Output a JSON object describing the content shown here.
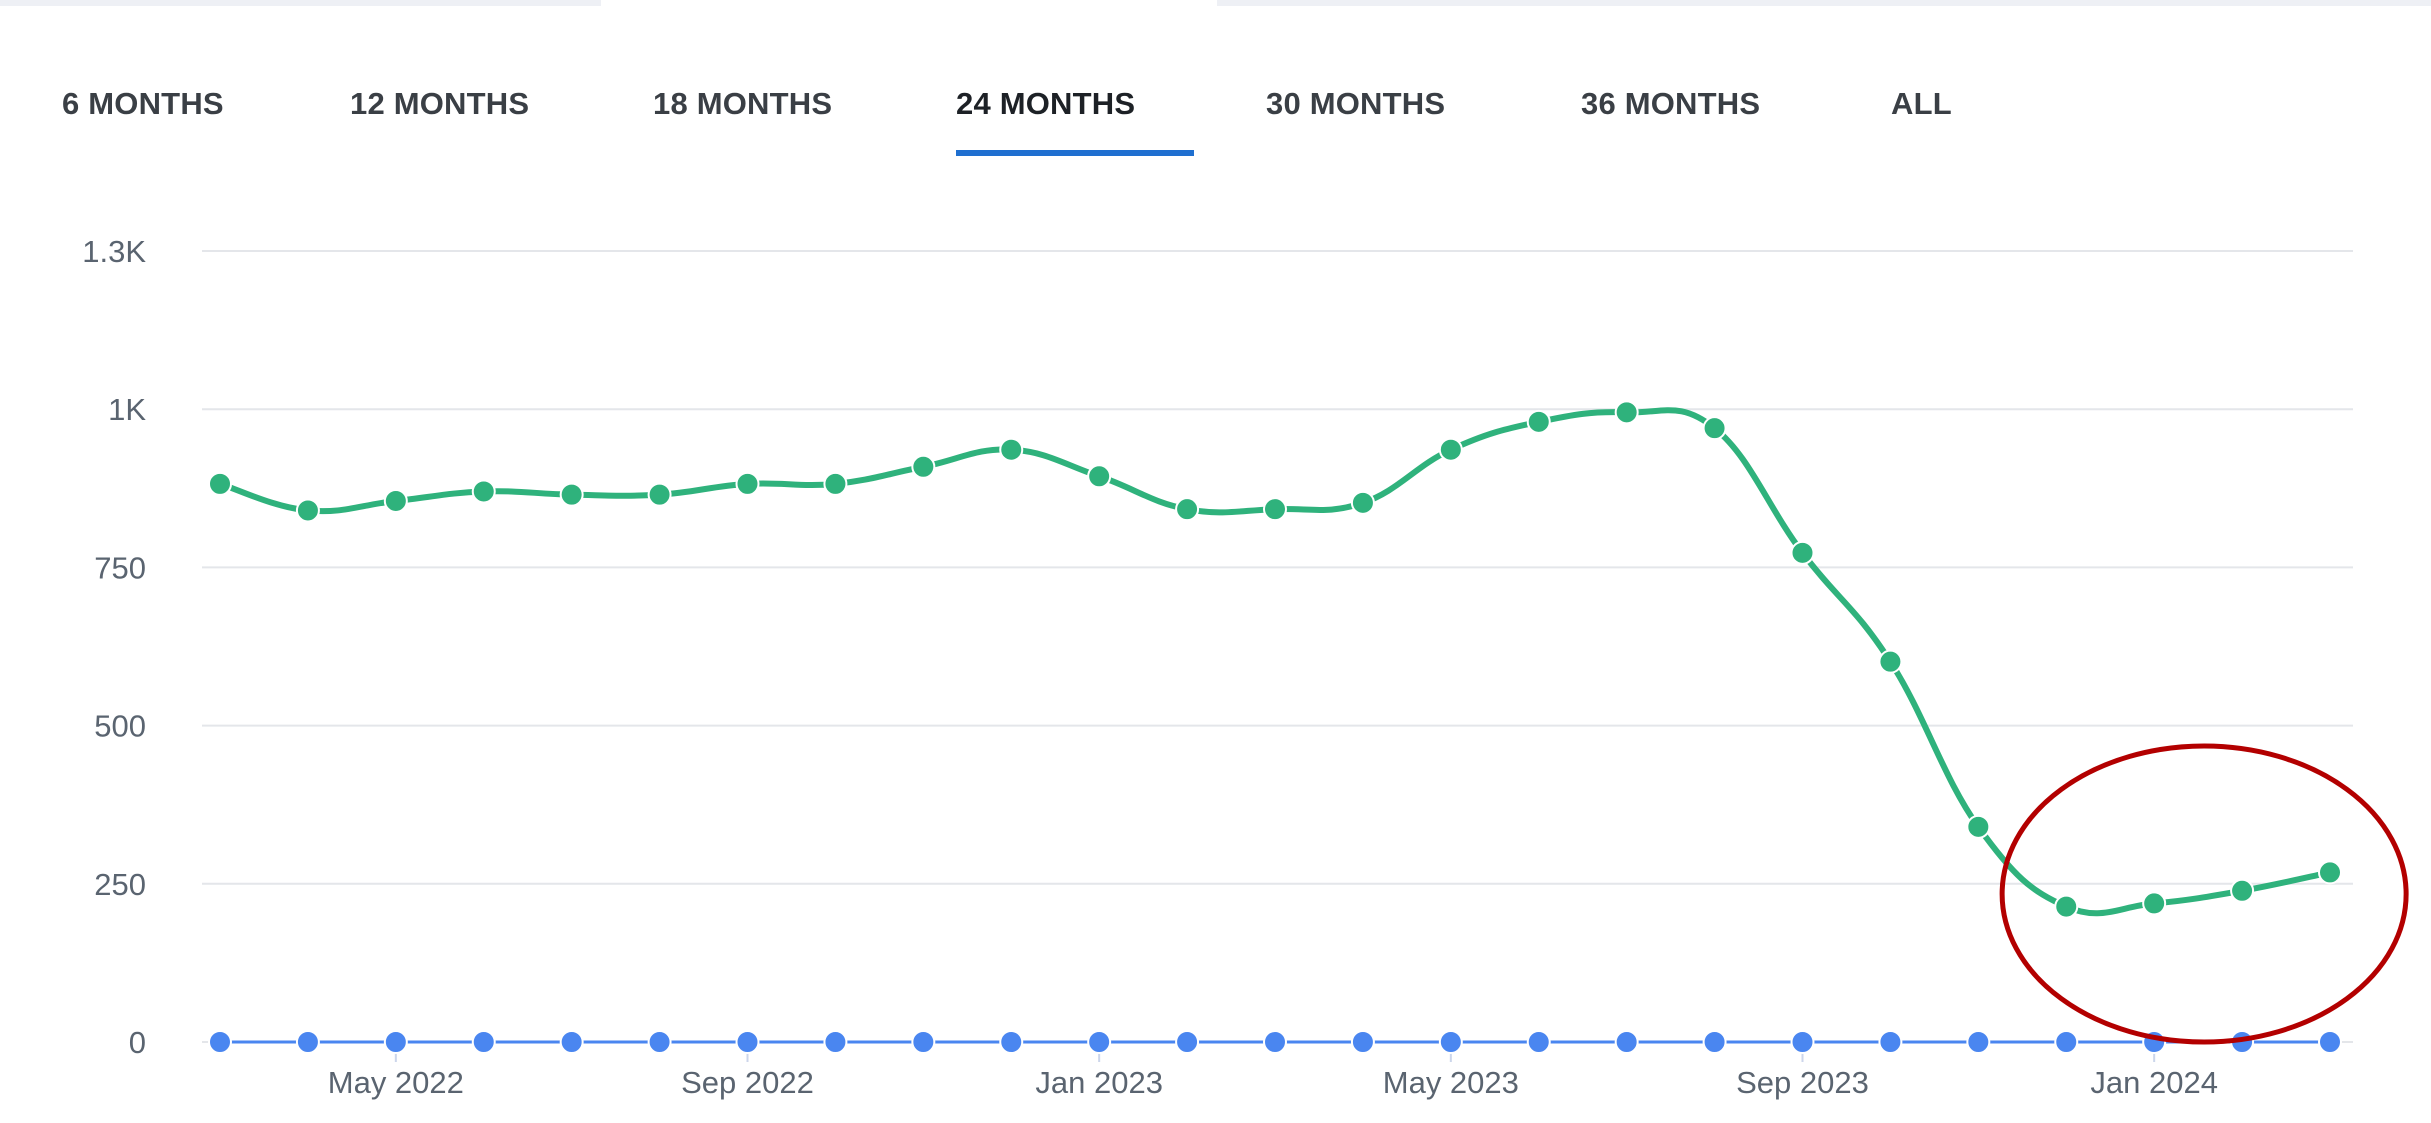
{
  "tabs": [
    {
      "label": "6 MONTHS",
      "active": false
    },
    {
      "label": "12 MONTHS",
      "active": false
    },
    {
      "label": "18 MONTHS",
      "active": false
    },
    {
      "label": "24 MONTHS",
      "active": true
    },
    {
      "label": "30 MONTHS",
      "active": false
    },
    {
      "label": "36 MONTHS",
      "active": false
    },
    {
      "label": "ALL",
      "active": false
    }
  ],
  "colors": {
    "accent": "#1f6fd0",
    "series_green": "#2fb27c",
    "series_blue": "#4a86f0",
    "annotation": "#b30000",
    "grid": "#e4e6ea"
  },
  "chart_data": {
    "type": "line",
    "x": [
      "2022-03",
      "2022-04",
      "2022-05",
      "2022-06",
      "2022-07",
      "2022-08",
      "2022-09",
      "2022-10",
      "2022-11",
      "2022-12",
      "2023-01",
      "2023-02",
      "2023-03",
      "2023-04",
      "2023-05",
      "2023-06",
      "2023-07",
      "2023-08",
      "2023-09",
      "2023-10",
      "2023-11",
      "2023-12",
      "2024-01",
      "2024-02",
      "2024-03"
    ],
    "xtick_labels": [
      {
        "label": "May 2022",
        "at": "2022-05"
      },
      {
        "label": "Sep 2022",
        "at": "2022-09"
      },
      {
        "label": "Jan 2023",
        "at": "2023-01"
      },
      {
        "label": "May 2023",
        "at": "2023-05"
      },
      {
        "label": "Sep 2023",
        "at": "2023-09"
      },
      {
        "label": "Jan 2024",
        "at": "2024-01"
      }
    ],
    "ytick_labels": [
      {
        "label": "0",
        "value": 0
      },
      {
        "label": "250",
        "value": 250
      },
      {
        "label": "500",
        "value": 500
      },
      {
        "label": "750",
        "value": 750
      },
      {
        "label": "1K",
        "value": 1000
      },
      {
        "label": "1.3K",
        "value": 1250
      }
    ],
    "ylim": [
      0,
      1250
    ],
    "grid": true,
    "series": [
      {
        "color": "#2fb27c",
        "values": [
          882,
          840,
          855,
          870,
          865,
          865,
          882,
          882,
          909,
          936,
          894,
          842,
          842,
          852,
          936,
          980,
          995,
          970,
          773,
          601,
          340,
          214,
          219,
          239,
          268
        ]
      },
      {
        "color": "#4a86f0",
        "values": [
          0,
          0,
          0,
          0,
          0,
          0,
          0,
          0,
          0,
          0,
          0,
          0,
          0,
          0,
          0,
          0,
          0,
          0,
          0,
          0,
          0,
          0,
          0,
          0,
          0
        ]
      }
    ],
    "annotation": {
      "shape": "ellipse",
      "color": "#b30000",
      "around": [
        "2023-12",
        "2024-03"
      ]
    }
  }
}
